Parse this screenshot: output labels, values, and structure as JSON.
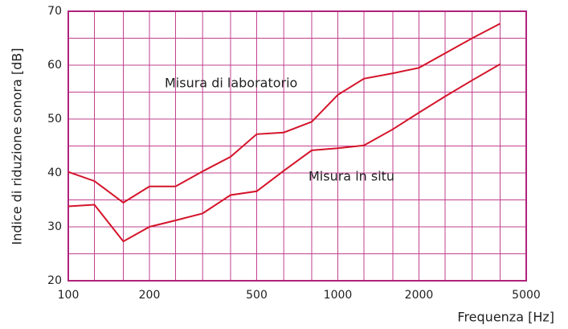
{
  "chart_data": {
    "type": "line",
    "x_label": "Frequenza [Hz]",
    "y_label": "Indice di riduzione sonora  [dB]",
    "x": [
      100,
      125,
      160,
      200,
      250,
      315,
      400,
      500,
      630,
      800,
      1000,
      1250,
      1600,
      2000,
      2500,
      3150,
      4000
    ],
    "series": [
      {
        "name": "Misura di laboratorio",
        "color": "#d4142a",
        "values": [
          40.2,
          38.5,
          34.5,
          37.5,
          37.5,
          40.3,
          43,
          47.2,
          47.5,
          49.5,
          54.5,
          57.5,
          58.5,
          59.5,
          62.2,
          65,
          67.7
        ]
      },
      {
        "name": "Misura in situ",
        "color": "#d4142a",
        "values": [
          33.8,
          34.1,
          27.3,
          30,
          31.2,
          32.5,
          35.9,
          36.6,
          40.4,
          44.2,
          44.6,
          45.1,
          48.1,
          51.2,
          54.2,
          57.2,
          60.2
        ]
      }
    ],
    "xlog": true,
    "xlim": [
      100,
      5000
    ],
    "xticks": [
      100,
      200,
      500,
      1000,
      2000,
      5000
    ],
    "x_grid": [
      125,
      160,
      250,
      315,
      400,
      630,
      800,
      1250,
      1600,
      2500,
      3150,
      4000
    ],
    "ylim": [
      20,
      70
    ],
    "yticks": [
      20,
      30,
      40,
      50,
      60,
      70
    ],
    "y_grid": [
      25,
      35,
      45,
      55,
      65
    ],
    "grid": true,
    "grid_color": "#c2408e",
    "frame_color": "#b0237c"
  }
}
